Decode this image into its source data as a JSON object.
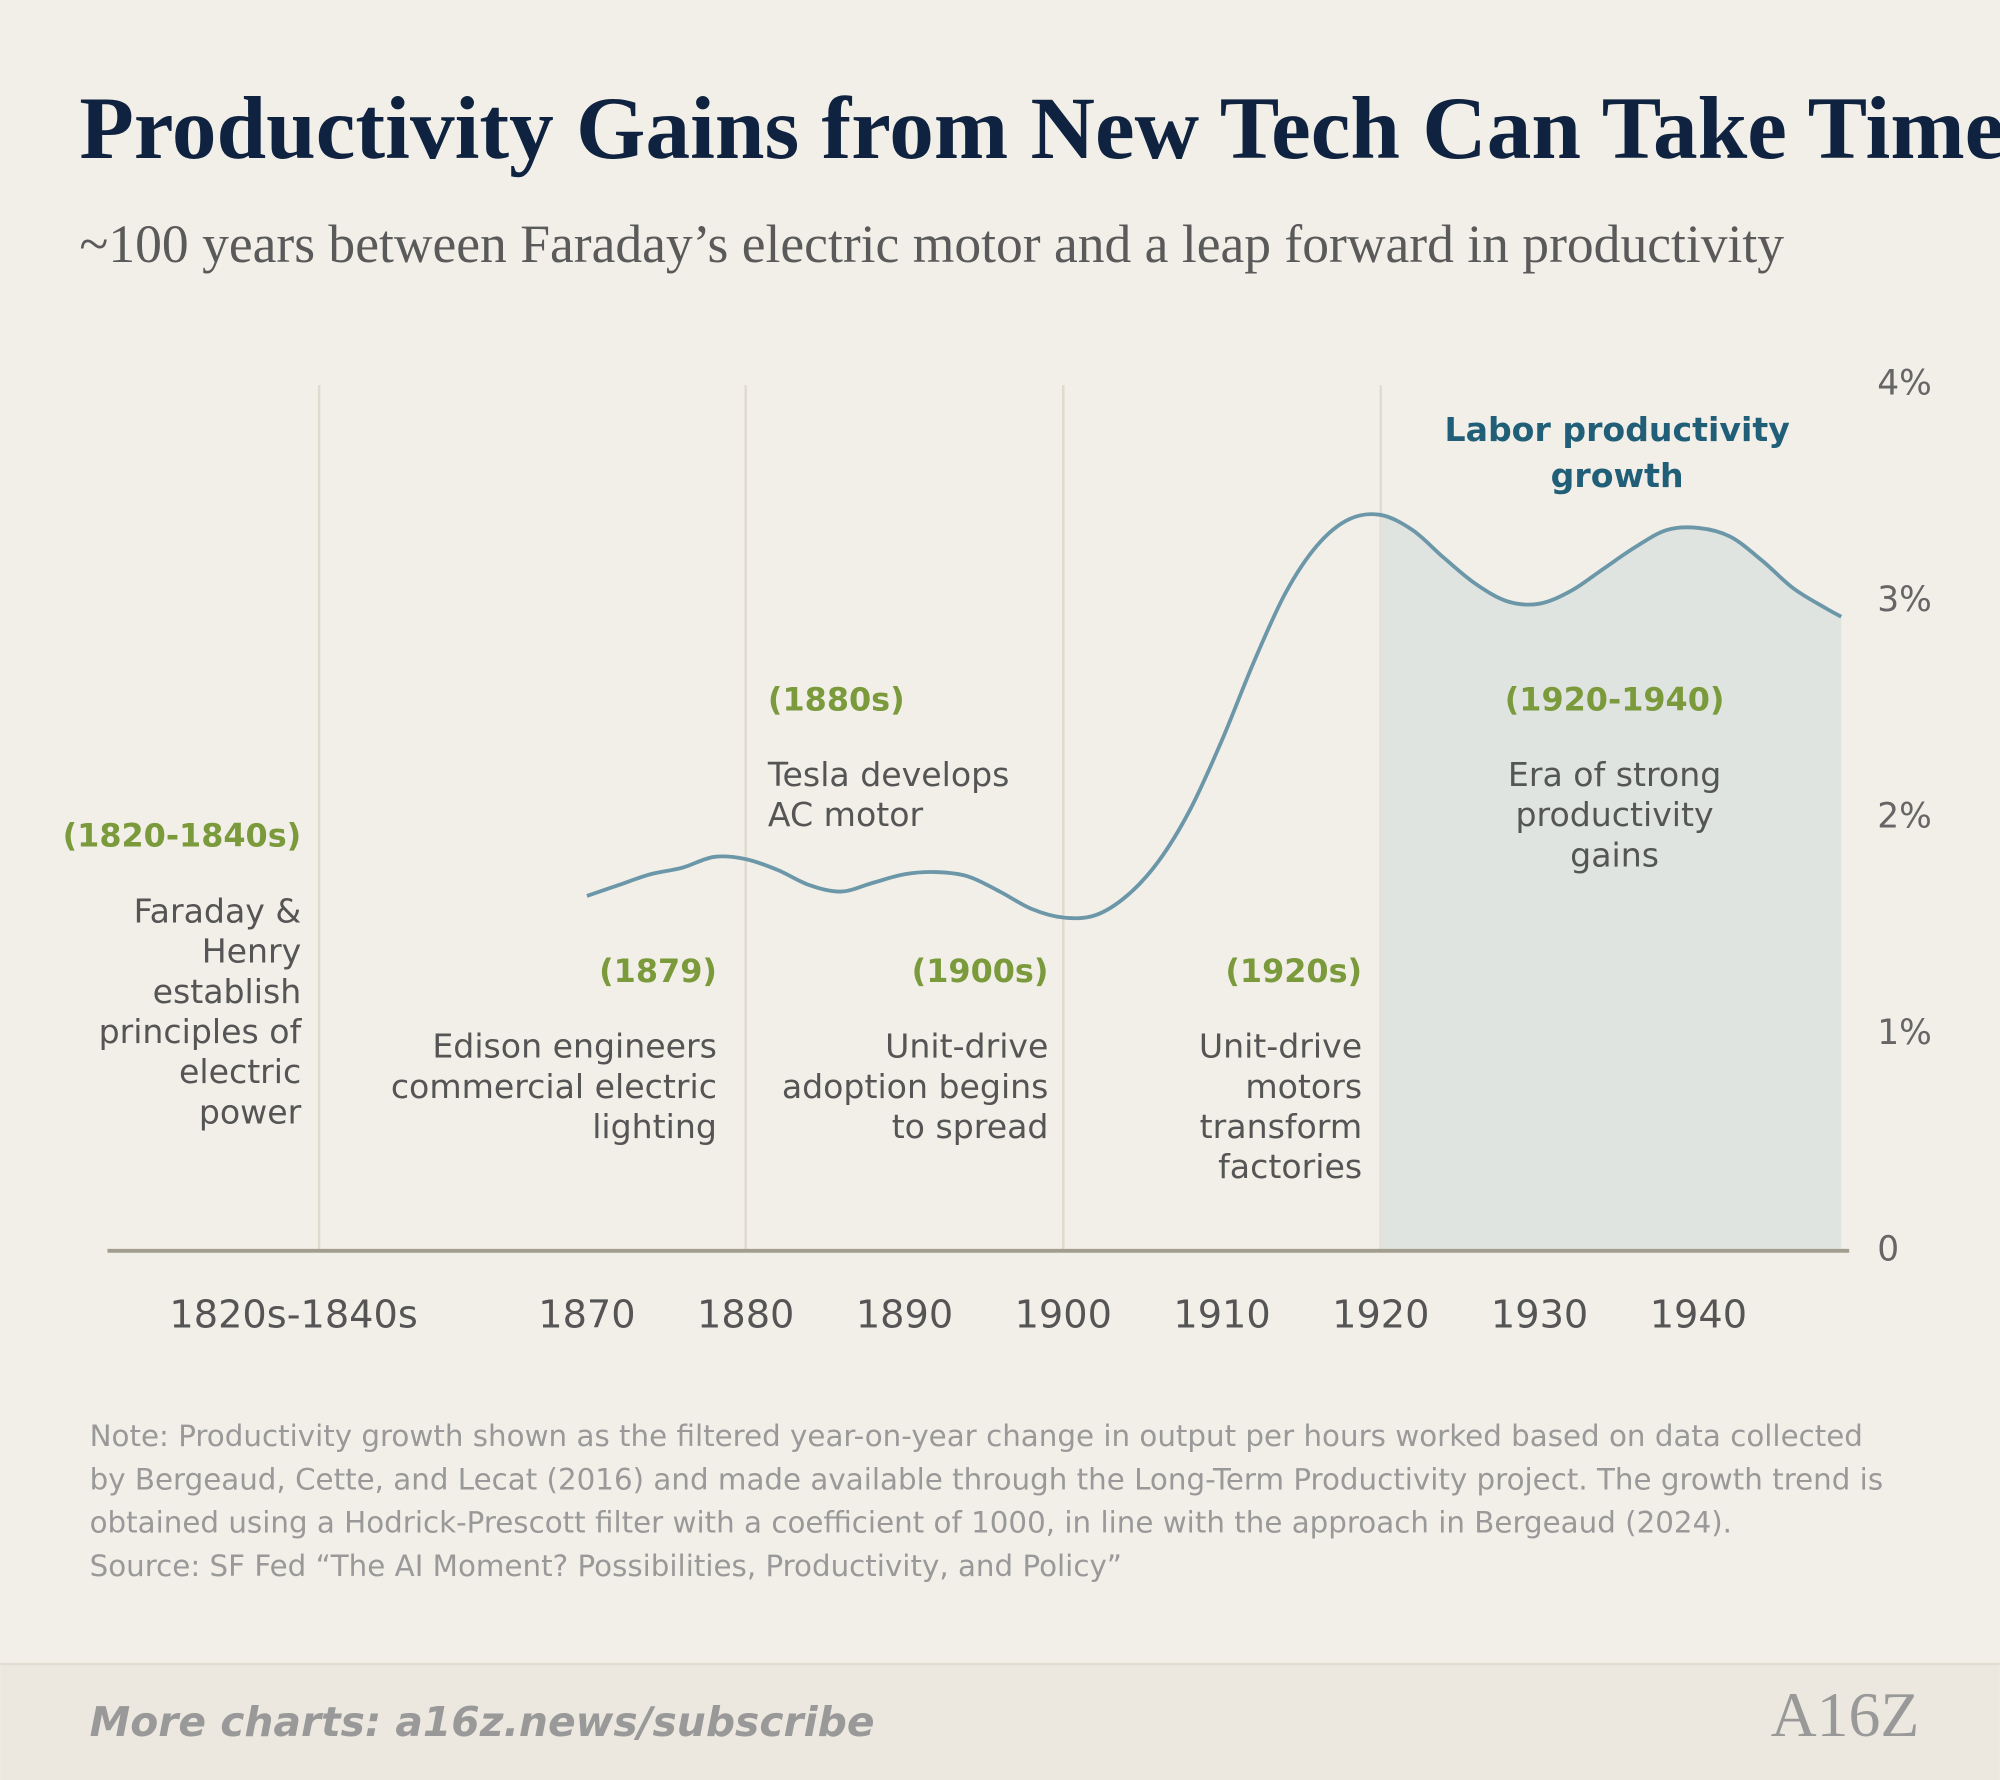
{
  "chart_data": {
    "type": "line",
    "title": "Productivity Gains from New Tech Can Take Time",
    "subtitle": "~100 years between Faraday’s electric motor and a leap forward in productivity",
    "x": [
      1870,
      1872,
      1874,
      1876,
      1878,
      1880,
      1882,
      1884,
      1886,
      1888,
      1890,
      1892,
      1894,
      1896,
      1898,
      1900,
      1902,
      1904,
      1906,
      1908,
      1910,
      1912,
      1914,
      1916,
      1918,
      1920,
      1922,
      1924,
      1926,
      1928,
      1930,
      1932,
      1934,
      1936,
      1938,
      1940,
      1942,
      1944,
      1946,
      1948,
      1949
    ],
    "series": [
      {
        "name": "Labor productivity growth",
        "color": "#6b97a8",
        "values": [
          1.64,
          1.69,
          1.74,
          1.77,
          1.82,
          1.81,
          1.76,
          1.69,
          1.66,
          1.7,
          1.74,
          1.75,
          1.73,
          1.66,
          1.58,
          1.54,
          1.55,
          1.64,
          1.8,
          2.04,
          2.36,
          2.72,
          3.04,
          3.26,
          3.38,
          3.4,
          3.33,
          3.2,
          3.08,
          3.0,
          2.99,
          3.05,
          3.15,
          3.25,
          3.33,
          3.34,
          3.3,
          3.19,
          3.06,
          2.97,
          2.93
        ]
      }
    ],
    "xlim": [
      1839.8,
      1949.5
    ],
    "xticks": [
      1870,
      1880,
      1890,
      1900,
      1910,
      1920,
      1930,
      1940
    ],
    "x_era_label": "1820s-1840s",
    "ylim": [
      0,
      4
    ],
    "yticks": [
      0,
      {
        "value": 1,
        "label": "1%"
      },
      {
        "value": 2,
        "label": "2%"
      },
      {
        "value": 3,
        "label": "3%"
      },
      {
        "value": 4,
        "label": "4%"
      }
    ],
    "dividers": [
      1880,
      1900,
      1920
    ],
    "shade_from": 1920,
    "shade_color": "#e0e4e0",
    "annotations": [
      {
        "period": "(1820-1840s)",
        "lines": [
          "Faraday &",
          "Henry",
          "establish",
          "principles of",
          "electric",
          "power"
        ]
      },
      {
        "period": "(1879)",
        "lines": [
          "Edison engineers",
          "commercial electric",
          "lighting"
        ]
      },
      {
        "period": "(1880s)",
        "lines": [
          "Tesla develops",
          "AC motor"
        ]
      },
      {
        "period": "(1900s)",
        "lines": [
          "Unit-drive",
          "adoption begins",
          "to spread"
        ]
      },
      {
        "period": "(1920s)",
        "lines": [
          "Unit-drive",
          "motors",
          "transform",
          "factories"
        ]
      },
      {
        "period": "(1920-1940)",
        "lines": [
          "Era of strong",
          "productivity",
          "gains"
        ]
      }
    ],
    "note": "Note: Productivity growth shown as the filtered year-on-year change in output per hours worked based on data collected by Bergeaud, Cette, and Lecat (2016) and made available through the Long-Term Productivity project. The growth trend is obtained using a Hodrick-Prescott filter with a coefficient of 1000, in line with the approach in Bergeaud (2024).",
    "source": "Source: SF Fed “The AI Moment? Possibilities, Productivity, and Policy”",
    "footer": "More charts: a16z.news/subscribe",
    "logo": "A16Z"
  }
}
